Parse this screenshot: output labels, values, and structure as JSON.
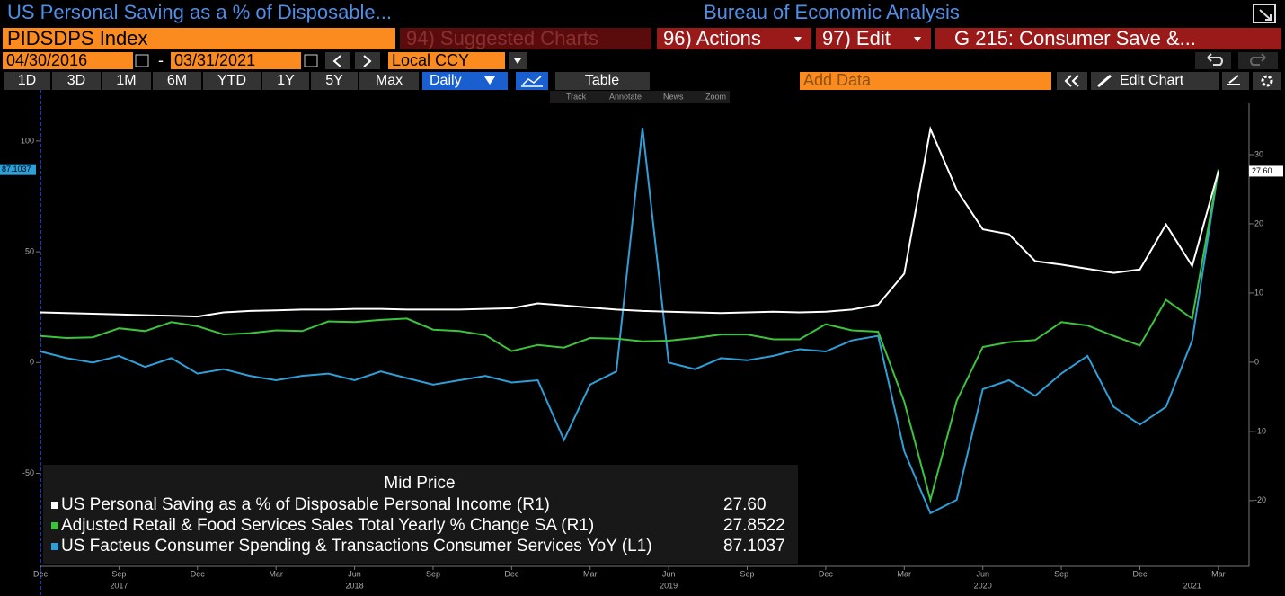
{
  "header": {
    "title": "US Personal Saving as a % of Disposable...",
    "source": "Bureau of Economic Analysis",
    "ticker": "PIDSDPS Index",
    "menus": [
      "94) Suggested Charts",
      "96) Actions",
      "97) Edit",
      "G 215: Consumer Save &..."
    ],
    "start_date": "04/30/2016",
    "date_separator": "-",
    "end_date": "03/31/2021",
    "currency": "Local CCY"
  },
  "toolbar": {
    "ranges": [
      "1D",
      "3D",
      "1M",
      "6M",
      "YTD",
      "1Y",
      "5Y",
      "Max"
    ],
    "frequency": "Daily",
    "table": "Table",
    "add_data": "Add Data",
    "edit_chart": "Edit Chart",
    "tools": [
      "Track",
      "Annotate",
      "News",
      "Zoom"
    ]
  },
  "chart_data": {
    "type": "line",
    "legend_title": "Mid Price",
    "x": [
      "2017-06",
      "2017-07",
      "2017-08",
      "2017-09",
      "2017-10",
      "2017-11",
      "2017-12",
      "2018-01",
      "2018-02",
      "2018-03",
      "2018-04",
      "2018-05",
      "2018-06",
      "2018-07",
      "2018-08",
      "2018-09",
      "2018-10",
      "2018-11",
      "2018-12",
      "2019-01",
      "2019-02",
      "2019-03",
      "2019-04",
      "2019-05",
      "2019-06",
      "2019-07",
      "2019-08",
      "2019-09",
      "2019-10",
      "2019-11",
      "2019-12",
      "2020-01",
      "2020-02",
      "2020-03",
      "2020-04",
      "2020-05",
      "2020-06",
      "2020-07",
      "2020-08",
      "2020-09",
      "2020-10",
      "2020-11",
      "2020-12",
      "2021-01",
      "2021-02",
      "2021-03"
    ],
    "xlim": [
      "2017-06",
      "2021-04"
    ],
    "xticks": [
      {
        "value": "2017-06",
        "label": "Dec"
      },
      {
        "value": "2017-09",
        "label": "Sep"
      },
      {
        "value": "2017-12",
        "label": "Dec"
      },
      {
        "value": "2018-03",
        "label": "Mar"
      },
      {
        "value": "2018-06",
        "label": "Jun"
      },
      {
        "value": "2018-09",
        "label": "Sep"
      },
      {
        "value": "2018-12",
        "label": "Dec"
      },
      {
        "value": "2019-03",
        "label": "Mar"
      },
      {
        "value": "2019-06",
        "label": "Jun"
      },
      {
        "value": "2019-09",
        "label": "Sep"
      },
      {
        "value": "2019-12",
        "label": "Dec"
      },
      {
        "value": "2020-03",
        "label": "Mar"
      },
      {
        "value": "2020-06",
        "label": "Jun"
      },
      {
        "value": "2020-09",
        "label": "Sep"
      },
      {
        "value": "2020-12",
        "label": "Dec"
      },
      {
        "value": "2021-03",
        "label": "Mar"
      }
    ],
    "year_ticks": [
      {
        "value": "2017-09",
        "label": "2017"
      },
      {
        "value": "2018-06",
        "label": "2018"
      },
      {
        "value": "2019-06",
        "label": "2019"
      },
      {
        "value": "2020-06",
        "label": "2020"
      },
      {
        "value": "2021-02",
        "label": "2021"
      }
    ],
    "ylim": [
      -92,
      117
    ],
    "yticks": [
      -50,
      0,
      50,
      100
    ],
    "y2lim": [
      -29.5,
      37.4
    ],
    "y2ticks": [
      -20,
      -10,
      0,
      10,
      20,
      30
    ],
    "series": [
      {
        "name": "US Personal Saving as a % of Disposable Personal Income  (R1)",
        "color": "#ffffff",
        "axis": "y2",
        "last_label": "27.60",
        "values": [
          7.2,
          7.1,
          7.0,
          6.9,
          6.8,
          6.7,
          6.6,
          7.2,
          7.4,
          7.5,
          7.6,
          7.6,
          7.7,
          7.7,
          7.6,
          7.6,
          7.6,
          7.7,
          7.8,
          8.5,
          8.2,
          7.9,
          7.6,
          7.4,
          7.3,
          7.2,
          7.1,
          7.2,
          7.3,
          7.2,
          7.3,
          7.6,
          8.3,
          12.8,
          33.7,
          24.9,
          19.2,
          18.5,
          14.6,
          14.1,
          13.5,
          12.9,
          13.4,
          19.9,
          13.9,
          27.6
        ]
      },
      {
        "name": "Adjusted Retail & Food Services Sales Total Yearly % Change SA  (R1)",
        "color": "#3cc43c",
        "axis": "y2",
        "values": [
          3.8,
          3.5,
          3.6,
          4.9,
          4.5,
          5.8,
          5.2,
          4.0,
          4.2,
          4.6,
          4.5,
          5.9,
          5.8,
          6.1,
          6.3,
          4.7,
          4.5,
          3.9,
          1.6,
          2.5,
          2.1,
          3.5,
          3.4,
          3.0,
          3.1,
          3.5,
          4.0,
          4.0,
          3.3,
          3.3,
          5.5,
          4.6,
          4.4,
          -5.7,
          -19.9,
          -5.6,
          2.2,
          2.9,
          3.2,
          5.8,
          5.3,
          3.8,
          2.4,
          9.0,
          6.3,
          27.8522
        ]
      },
      {
        "name": "US Facteus Consumer Spending & Transactions Consumer Services YoY  (L1)",
        "color": "#2f9fd8",
        "axis": "y",
        "values": [
          5,
          2,
          0,
          3,
          -2,
          2,
          -5,
          -3,
          -6,
          -8,
          -6,
          -5,
          -8,
          -4,
          -7,
          -10,
          -8,
          -6,
          -9,
          -8,
          -35,
          -10,
          -4,
          106,
          0,
          -3,
          2,
          1,
          3,
          6,
          5,
          10,
          12,
          -40,
          -68,
          -62,
          -12,
          -8,
          -15,
          -5,
          3,
          -20,
          -28,
          -20,
          10,
          87.1037
        ]
      }
    ]
  }
}
